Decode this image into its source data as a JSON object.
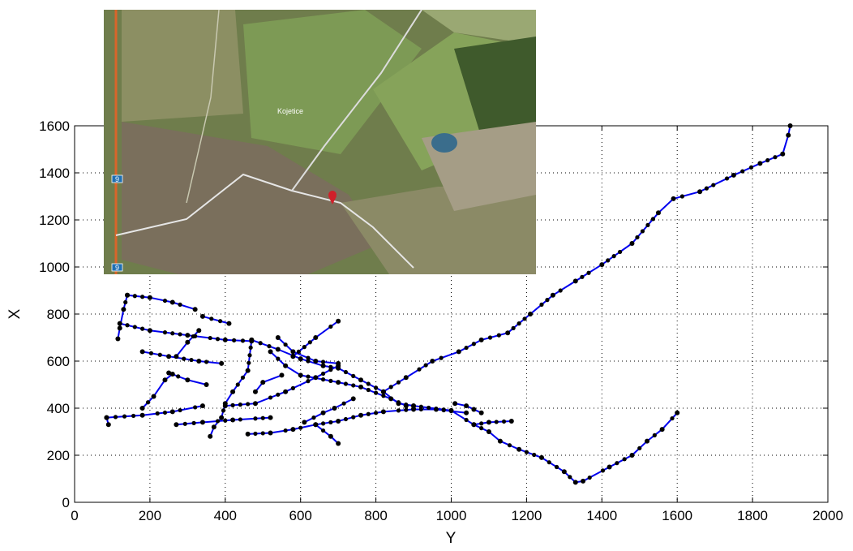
{
  "chart_data": {
    "type": "line",
    "title": "",
    "xlabel": "Y",
    "ylabel": "X",
    "xlim": [
      0,
      2000
    ],
    "ylim": [
      0,
      1600
    ],
    "xticks": [
      0,
      200,
      400,
      600,
      800,
      1000,
      1200,
      1400,
      1600,
      1800,
      2000
    ],
    "yticks": [
      0,
      200,
      400,
      600,
      800,
      1000,
      1200,
      1400,
      1600
    ],
    "grid": true,
    "colors": {
      "line": "#0000ee",
      "marker": "#000000"
    },
    "series": [
      {
        "points": [
          [
            85,
            360
          ],
          [
            90,
            330
          ]
        ]
      },
      {
        "points": [
          [
            85,
            360
          ],
          [
            180,
            370
          ],
          [
            260,
            385
          ],
          [
            340,
            410
          ]
        ]
      },
      {
        "points": [
          [
            180,
            400
          ],
          [
            210,
            450
          ],
          [
            240,
            520
          ],
          [
            260,
            545
          ]
        ]
      },
      {
        "points": [
          [
            140,
            880
          ],
          [
            200,
            870
          ],
          [
            260,
            850
          ],
          [
            320,
            820
          ]
        ]
      },
      {
        "points": [
          [
            140,
            880
          ],
          [
            130,
            820
          ],
          [
            120,
            740
          ],
          [
            115,
            695
          ]
        ]
      },
      {
        "points": [
          [
            120,
            760
          ],
          [
            200,
            730
          ],
          [
            300,
            710
          ],
          [
            400,
            690
          ],
          [
            470,
            685
          ]
        ]
      },
      {
        "points": [
          [
            180,
            640
          ],
          [
            250,
            620
          ],
          [
            330,
            600
          ],
          [
            390,
            590
          ]
        ]
      },
      {
        "points": [
          [
            250,
            550
          ],
          [
            300,
            520
          ],
          [
            350,
            500
          ]
        ]
      },
      {
        "points": [
          [
            340,
            790
          ],
          [
            410,
            760
          ]
        ]
      },
      {
        "points": [
          [
            330,
            730
          ],
          [
            300,
            680
          ],
          [
            270,
            620
          ]
        ]
      },
      {
        "points": [
          [
            360,
            280
          ],
          [
            370,
            320
          ],
          [
            390,
            360
          ],
          [
            400,
            420
          ],
          [
            420,
            470
          ],
          [
            460,
            560
          ],
          [
            470,
            690
          ]
        ]
      },
      {
        "points": [
          [
            400,
            410
          ],
          [
            480,
            420
          ],
          [
            560,
            470
          ],
          [
            640,
            530
          ],
          [
            700,
            580
          ]
        ]
      },
      {
        "points": [
          [
            470,
            690
          ],
          [
            540,
            650
          ],
          [
            600,
            610
          ],
          [
            660,
            580
          ],
          [
            700,
            570
          ],
          [
            760,
            520
          ],
          [
            820,
            470
          ],
          [
            860,
            420
          ],
          [
            900,
            410
          ]
        ]
      },
      {
        "points": [
          [
            540,
            700
          ],
          [
            580,
            640
          ],
          [
            640,
            600
          ],
          [
            700,
            590
          ]
        ]
      },
      {
        "points": [
          [
            580,
            620
          ],
          [
            640,
            700
          ],
          [
            700,
            770
          ]
        ]
      },
      {
        "points": [
          [
            520,
            640
          ],
          [
            560,
            580
          ],
          [
            600,
            540
          ],
          [
            700,
            510
          ],
          [
            760,
            490
          ],
          [
            840,
            440
          ],
          [
            880,
            410
          ]
        ]
      },
      {
        "points": [
          [
            270,
            330
          ],
          [
            340,
            340
          ],
          [
            420,
            350
          ],
          [
            520,
            360
          ]
        ]
      },
      {
        "points": [
          [
            460,
            290
          ],
          [
            520,
            295
          ],
          [
            580,
            310
          ],
          [
            640,
            330
          ],
          [
            700,
            345
          ],
          [
            760,
            370
          ],
          [
            820,
            385
          ],
          [
            900,
            395
          ],
          [
            960,
            395
          ],
          [
            1040,
            380
          ]
        ]
      },
      {
        "points": [
          [
            640,
            330
          ],
          [
            680,
            280
          ],
          [
            700,
            250
          ]
        ]
      },
      {
        "points": [
          [
            480,
            470
          ],
          [
            500,
            510
          ],
          [
            550,
            540
          ]
        ]
      },
      {
        "points": [
          [
            610,
            340
          ],
          [
            660,
            380
          ],
          [
            690,
            400
          ],
          [
            740,
            440
          ]
        ]
      },
      {
        "points": [
          [
            820,
            470
          ],
          [
            880,
            530
          ],
          [
            950,
            600
          ],
          [
            1020,
            640
          ],
          [
            1080,
            690
          ],
          [
            1150,
            720
          ],
          [
            1210,
            800
          ],
          [
            1270,
            880
          ],
          [
            1330,
            940
          ],
          [
            1400,
            1010
          ],
          [
            1480,
            1100
          ],
          [
            1550,
            1230
          ],
          [
            1590,
            1290
          ],
          [
            1660,
            1320
          ],
          [
            1750,
            1390
          ],
          [
            1820,
            1440
          ],
          [
            1880,
            1480
          ],
          [
            1895,
            1560
          ],
          [
            1900,
            1600
          ]
        ]
      },
      {
        "points": [
          [
            900,
            410
          ],
          [
            1000,
            390
          ],
          [
            1060,
            330
          ],
          [
            1100,
            340
          ],
          [
            1160,
            345
          ]
        ]
      },
      {
        "points": [
          [
            1010,
            420
          ],
          [
            1040,
            410
          ],
          [
            1060,
            395
          ],
          [
            1080,
            380
          ]
        ]
      },
      {
        "points": [
          [
            1060,
            330
          ],
          [
            1100,
            300
          ],
          [
            1130,
            260
          ],
          [
            1180,
            225
          ],
          [
            1240,
            190
          ],
          [
            1300,
            130
          ],
          [
            1330,
            85
          ],
          [
            1350,
            90
          ],
          [
            1420,
            150
          ],
          [
            1480,
            200
          ],
          [
            1520,
            260
          ],
          [
            1560,
            310
          ],
          [
            1600,
            380
          ]
        ]
      }
    ],
    "annotations": [
      {
        "label": "Kojetice",
        "x": 360,
        "y": 135
      }
    ]
  },
  "inset_map": {
    "place_label": "Kojetice",
    "road_shield_1": "9",
    "road_shield_2": "9"
  }
}
